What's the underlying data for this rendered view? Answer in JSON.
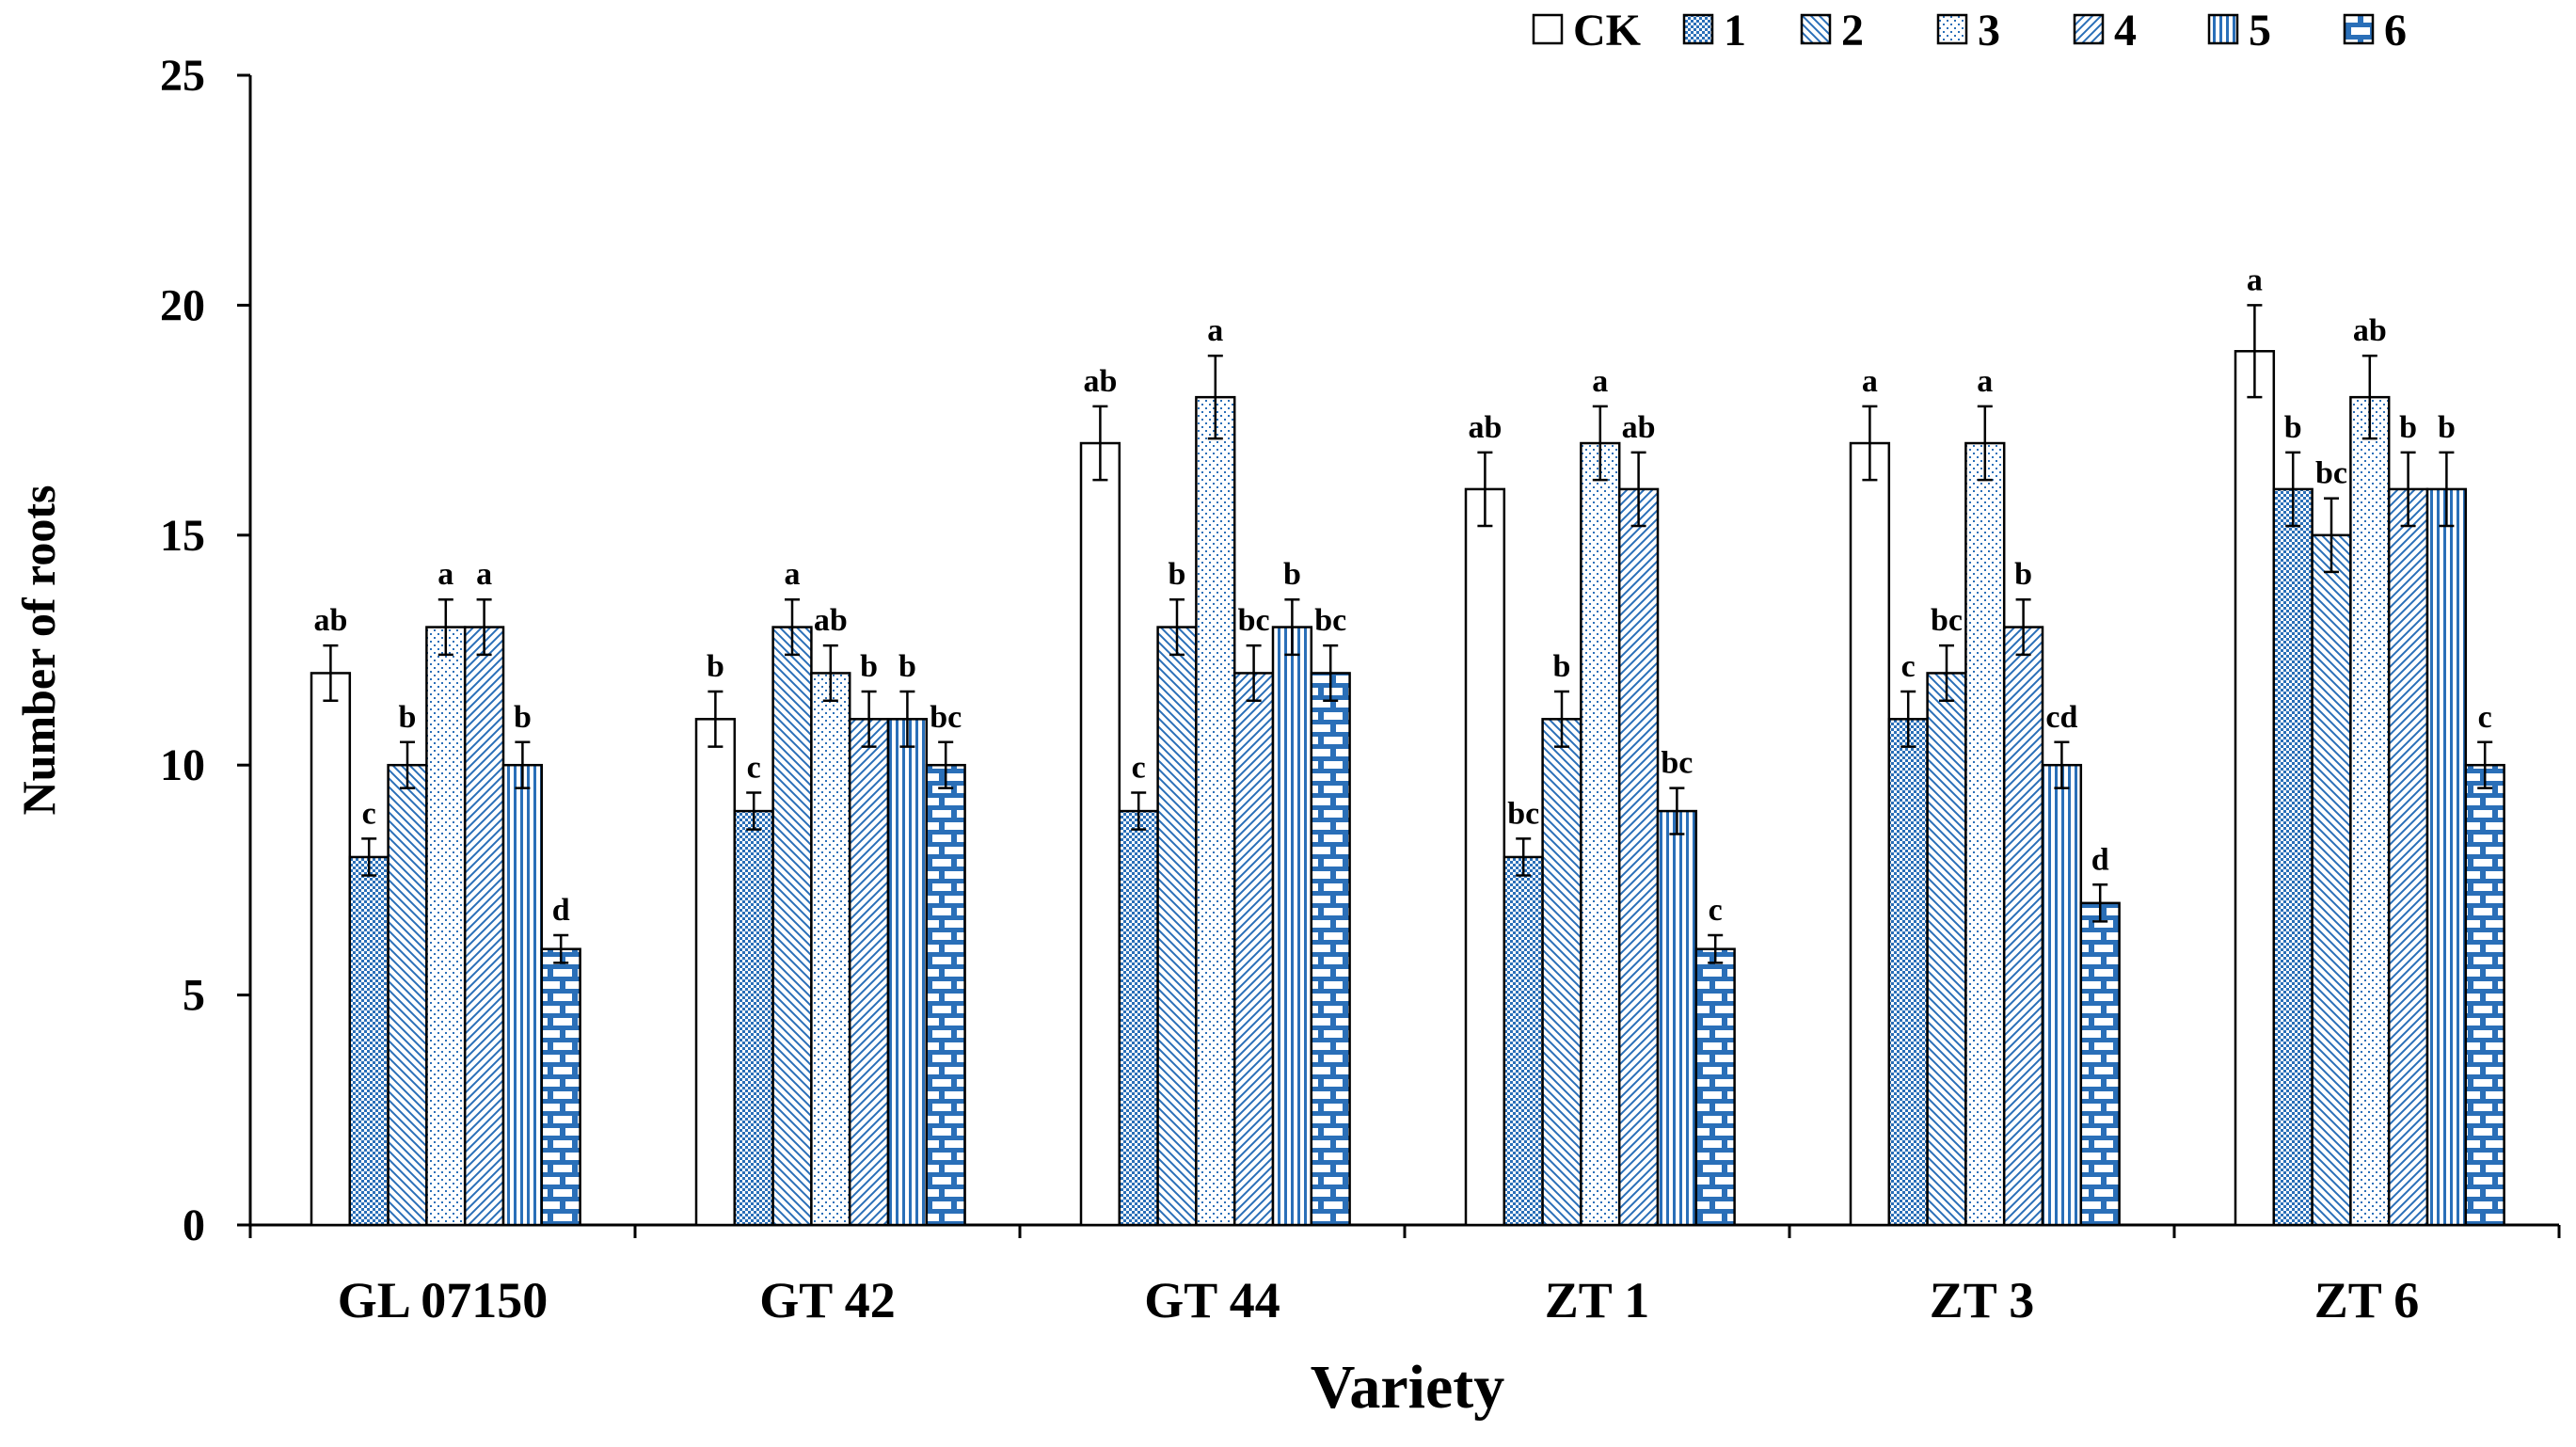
{
  "chart_data": {
    "type": "bar",
    "title": "",
    "xlabel": "Variety",
    "ylabel": "Number of roots",
    "ylim": [
      0,
      25
    ],
    "yticks": [
      0,
      5,
      10,
      15,
      20,
      25
    ],
    "categories": [
      "GL 07150",
      "GT 42",
      "GT 44",
      "ZT 1",
      "ZT 3",
      "ZT 6"
    ],
    "legend_position": "top-right",
    "series": [
      {
        "name": "CK",
        "values": [
          12,
          11,
          17,
          16,
          17,
          19
        ],
        "errors": [
          0.6,
          0.6,
          0.8,
          0.8,
          0.8,
          1.0
        ],
        "letters": [
          "ab",
          "b",
          "ab",
          "ab",
          "a",
          "a"
        ],
        "pattern": "none"
      },
      {
        "name": "1",
        "values": [
          8,
          9,
          9,
          8,
          11,
          16
        ],
        "errors": [
          0.4,
          0.4,
          0.4,
          0.4,
          0.6,
          0.8
        ],
        "letters": [
          "c",
          "c",
          "c",
          "bc",
          "c",
          "b"
        ],
        "pattern": "dots-dense"
      },
      {
        "name": "2",
        "values": [
          10,
          13,
          13,
          11,
          12,
          15
        ],
        "errors": [
          0.5,
          0.6,
          0.6,
          0.6,
          0.6,
          0.8
        ],
        "letters": [
          "b",
          "a",
          "b",
          "b",
          "bc",
          "bc"
        ],
        "pattern": "diag-down"
      },
      {
        "name": "3",
        "values": [
          13,
          12,
          18,
          17,
          17,
          18
        ],
        "errors": [
          0.6,
          0.6,
          0.9,
          0.8,
          0.8,
          0.9
        ],
        "letters": [
          "a",
          "ab",
          "a",
          "a",
          "a",
          "ab"
        ],
        "pattern": "dots-sparse"
      },
      {
        "name": "4",
        "values": [
          13,
          11,
          12,
          16,
          13,
          16
        ],
        "errors": [
          0.6,
          0.6,
          0.6,
          0.8,
          0.6,
          0.8
        ],
        "letters": [
          "a",
          "b",
          "bc",
          "ab",
          "b",
          "b"
        ],
        "pattern": "diag-up"
      },
      {
        "name": "5",
        "values": [
          10,
          11,
          13,
          9,
          10,
          16
        ],
        "errors": [
          0.5,
          0.6,
          0.6,
          0.5,
          0.5,
          0.8
        ],
        "letters": [
          "b",
          "b",
          "b",
          "bc",
          "cd",
          "b"
        ],
        "pattern": "vertical"
      },
      {
        "name": "6",
        "values": [
          6,
          10,
          12,
          6,
          7,
          10
        ],
        "errors": [
          0.3,
          0.5,
          0.6,
          0.3,
          0.4,
          0.5
        ],
        "letters": [
          "d",
          "bc",
          "bc",
          "c",
          "d",
          "c"
        ],
        "pattern": "brick"
      }
    ]
  }
}
